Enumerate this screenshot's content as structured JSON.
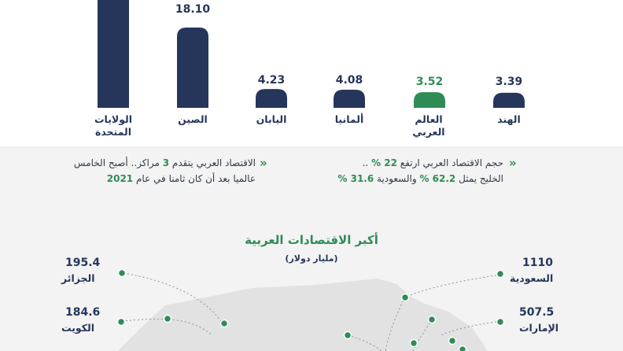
{
  "chart_data": {
    "type": "bar",
    "categories": [
      "الولايات المتحدة",
      "الصين",
      "اليابان",
      "ألمانيا",
      "العالم العربي",
      "الهند"
    ],
    "values": [
      null,
      18.1,
      4.23,
      4.08,
      3.52,
      3.39
    ],
    "value_labels": [
      "",
      "18.10",
      "4.23",
      "4.08",
      "3.52",
      "3.39"
    ],
    "highlight": "العالم العربي",
    "colors": {
      "bar": "#26365a",
      "highlight": "#2f8c56"
    }
  },
  "notes": {
    "left": {
      "line1_a": "الاقتصاد العربي يتقدم",
      "line1_num": "3",
      "line1_b": "مراكز.. أصبح الخامس",
      "line2_a": "عالميا بعد أن كان ثامنا في عام",
      "line2_num": "2021"
    },
    "right": {
      "line1_a": "حجم الاقتصاد العربي ارتفع",
      "line1_num": "22 %",
      "line1_b": "..",
      "line2_a": "الخليج يمثل",
      "line2_num1": "62.2 %",
      "line2_b": "والسعودية",
      "line2_num2": "31.6 %"
    },
    "bullet": "»"
  },
  "map": {
    "title": "أكبر الاقتصادات العربية",
    "subtitle": "(مليار دولار)",
    "countries": [
      {
        "name": "الجزائر",
        "value": "195.4"
      },
      {
        "name": "الكويت",
        "value": "184.6"
      },
      {
        "name": "السعودية",
        "value": "1110"
      },
      {
        "name": "الإمارات",
        "value": "507.5"
      }
    ]
  }
}
